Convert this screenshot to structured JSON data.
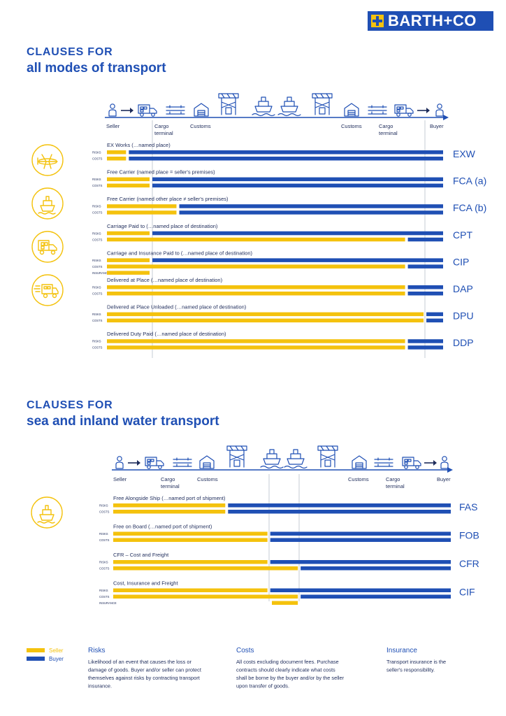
{
  "brand": {
    "name": "BARTH+CO"
  },
  "colors": {
    "seller": "#f4c20d",
    "buyer": "#1f4fb4",
    "text": "#1d2b5a",
    "divider": "#b8bfc9"
  },
  "section1": {
    "title_bold": "CLAUSES FOR",
    "title_light": "all modes of transport",
    "stations": [
      "Seller",
      "Cargo terminal",
      "Customs",
      "Customs",
      "Cargo terminal",
      "Buyer"
    ],
    "mode_icons": [
      "plane-icon",
      "ship-icon",
      "truck-icon",
      "speeding-truck-icon"
    ],
    "clauses": [
      {
        "code": "EXW",
        "desc": "EX Works (…named place)",
        "rows": [
          {
            "label": "RISKS",
            "seller_to": 0.06,
            "buyer_from": 0.06
          },
          {
            "label": "COSTS",
            "seller_to": 0.06,
            "buyer_from": 0.06
          }
        ]
      },
      {
        "code": "FCA (a)",
        "desc": "Free Carrier (named place = seller's premises)",
        "rows": [
          {
            "label": "RISKS",
            "seller_to": 0.13,
            "buyer_from": 0.13
          },
          {
            "label": "COSTS",
            "seller_to": 0.13,
            "buyer_from": 0.13
          }
        ]
      },
      {
        "code": "FCA (b)",
        "desc": "Free Carrier (named other place ≠ seller's premises)",
        "rows": [
          {
            "label": "RISKS",
            "seller_to": 0.21,
            "buyer_from": 0.21
          },
          {
            "label": "COSTS",
            "seller_to": 0.21,
            "buyer_from": 0.21
          }
        ]
      },
      {
        "code": "CPT",
        "desc": "Carriage Paid to (…named place of destination)",
        "rows": [
          {
            "label": "RISKS",
            "seller_to": 0.13,
            "buyer_from": 0.13
          },
          {
            "label": "COSTS",
            "seller_to": 0.89,
            "buyer_from": 0.89
          }
        ]
      },
      {
        "code": "CIP",
        "desc": "Carriage and Insurance Paid to (…named place of destination)",
        "rows": [
          {
            "label": "RISKS",
            "seller_to": 0.13,
            "buyer_from": 0.13
          },
          {
            "label": "COSTS",
            "seller_to": 0.89,
            "buyer_from": 0.89
          },
          {
            "label": "INSURANCE",
            "seller_to": 0.13,
            "buyer_from": 1.0
          }
        ]
      },
      {
        "code": "DAP",
        "desc": "Delivered at Place (…named place of destination)",
        "rows": [
          {
            "label": "RISKS",
            "seller_to": 0.89,
            "buyer_from": 0.89
          },
          {
            "label": "COSTS",
            "seller_to": 0.89,
            "buyer_from": 0.89
          }
        ]
      },
      {
        "code": "DPU",
        "desc": "Delivered at Place Unloaded (…named place of destination)",
        "rows": [
          {
            "label": "RISKS",
            "seller_to": 0.945,
            "buyer_from": 0.945
          },
          {
            "label": "COSTS",
            "seller_to": 0.945,
            "buyer_from": 0.945
          }
        ]
      },
      {
        "code": "DDP",
        "desc": "Delivered Duty Paid (…named place of destination)",
        "rows": [
          {
            "label": "RISKS",
            "seller_to": 0.89,
            "buyer_from": 0.89
          },
          {
            "label": "COSTS",
            "seller_to": 0.89,
            "buyer_from": 0.89
          }
        ]
      }
    ]
  },
  "section2": {
    "title_bold": "CLAUSES FOR",
    "title_light": "sea and inland water transport",
    "stations": [
      "Seller",
      "Cargo terminal",
      "Customs",
      "Customs",
      "Cargo terminal",
      "Buyer"
    ],
    "mode_icons": [
      "ship-icon"
    ],
    "clauses": [
      {
        "code": "FAS",
        "desc": "Free Alongside Ship (…named port of shipment)",
        "rows": [
          {
            "label": "RISKS",
            "seller_to": 0.335,
            "buyer_from": 0.335
          },
          {
            "label": "COSTS",
            "seller_to": 0.335,
            "buyer_from": 0.335
          }
        ]
      },
      {
        "code": "FOB",
        "desc": "Free on Board (…named port of shipment)",
        "rows": [
          {
            "label": "RISKS",
            "seller_to": 0.46,
            "buyer_from": 0.46
          },
          {
            "label": "COSTS",
            "seller_to": 0.46,
            "buyer_from": 0.46
          }
        ]
      },
      {
        "code": "CFR",
        "desc": "CFR – Cost and Freight",
        "rows": [
          {
            "label": "RISKS",
            "seller_to": 0.46,
            "buyer_from": 0.46
          },
          {
            "label": "COSTS",
            "seller_to": 0.55,
            "buyer_from": 0.55
          }
        ]
      },
      {
        "code": "CIF",
        "desc": "Cost, Insurance and Freight",
        "rows": [
          {
            "label": "RISKS",
            "seller_to": 0.46,
            "buyer_from": 0.46
          },
          {
            "label": "COSTS",
            "seller_to": 0.55,
            "buyer_from": 0.55
          },
          {
            "label": "INSURANCE",
            "seller_to": 0.55,
            "buyer_from": 1.0,
            "seller_from": 0.47
          }
        ]
      }
    ]
  },
  "legend": {
    "seller": "Seller",
    "buyer": "Buyer",
    "risks_title": "Risks",
    "risks_text": "Likelihood of an event that causes  the loss or damage of goods. Buyer and/or seller can protect themselves against risks by contracting transport insurance.",
    "costs_title": "Costs",
    "costs_text": "All costs excluding document fees. Purchase contracts should clearly indicate  what costs shall be borne by the buyer and/or by the seller upon transfer of goods.",
    "insurance_title": "Insurance",
    "insurance_text": "Transport insurance is the seller's responsibility."
  }
}
